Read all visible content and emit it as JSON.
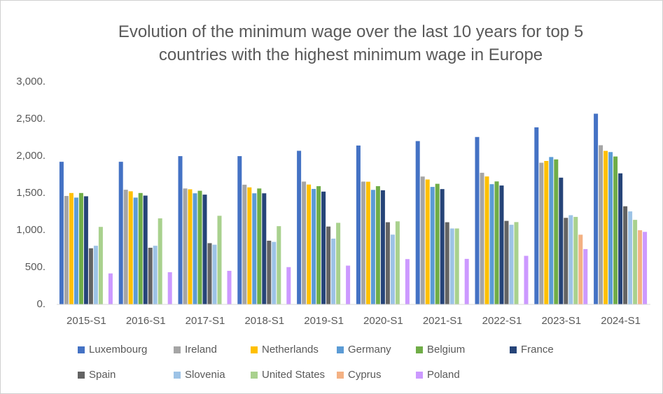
{
  "chart_data": {
    "type": "bar",
    "title": "Evolution of the minimum wage over the last 10 years for top 5 countries with the highest minimum wage in Europe",
    "categories": [
      "2015-S1",
      "2016-S1",
      "2017-S1",
      "2018-S1",
      "2019-S1",
      "2020-S1",
      "2021-S1",
      "2022-S1",
      "2023-S1",
      "2024-S1"
    ],
    "series": [
      {
        "name": "Luxembourg",
        "color": "#4472c4",
        "values": [
          1923,
          1923,
          1999,
          1999,
          2071,
          2142,
          2202,
          2257,
          2387,
          2571
        ]
      },
      {
        "name": "Ireland",
        "color": "#a5a5a5",
        "values": [
          1462,
          1546,
          1563,
          1614,
          1656,
          1656,
          1724,
          1775,
          1910,
          2146
        ]
      },
      {
        "name": "Netherlands",
        "color": "#ffc000",
        "values": [
          1502,
          1525,
          1552,
          1578,
          1616,
          1654,
          1684,
          1725,
          1934,
          2070
        ]
      },
      {
        "name": "Germany",
        "color": "#5b9bd5",
        "values": [
          1440,
          1440,
          1498,
          1498,
          1557,
          1544,
          1584,
          1621,
          1987,
          2054
        ]
      },
      {
        "name": "Belgium",
        "color": "#70ad47",
        "values": [
          1502,
          1502,
          1532,
          1563,
          1594,
          1594,
          1626,
          1658,
          1955,
          1994
        ]
      },
      {
        "name": "France",
        "color": "#264478",
        "values": [
          1458,
          1467,
          1480,
          1498,
          1521,
          1539,
          1555,
          1603,
          1709,
          1767
        ]
      },
      {
        "name": "Spain",
        "color": "#636363",
        "values": [
          757,
          764,
          826,
          859,
          1050,
          1108,
          1108,
          1126,
          1167,
          1323
        ]
      },
      {
        "name": "Slovenia",
        "color": "#9dc3e6",
        "values": [
          791,
          791,
          805,
          843,
          887,
          941,
          1024,
          1074,
          1203,
          1254
        ]
      },
      {
        "name": "United States",
        "color": "#a9d18e",
        "values": [
          1045,
          1160,
          1195,
          1055,
          1100,
          1120,
          1024,
          1110,
          1180,
          1140
        ]
      },
      {
        "name": "Cyprus",
        "color": "#f4b183",
        "values": [
          null,
          null,
          null,
          null,
          null,
          null,
          null,
          null,
          940,
          1000
        ]
      },
      {
        "name": "Poland",
        "color": "#cc99ff",
        "values": [
          418,
          434,
          453,
          503,
          523,
          611,
          614,
          655,
          746,
          978
        ]
      }
    ],
    "ylim": [
      0,
      3000
    ],
    "yticks": [
      {
        "value": 0,
        "label": "0."
      },
      {
        "value": 500,
        "label": "500."
      },
      {
        "value": 1000,
        "label": "1,000."
      },
      {
        "value": 1500,
        "label": "1,500."
      },
      {
        "value": 2000,
        "label": "2,000."
      },
      {
        "value": 2500,
        "label": "2,500."
      },
      {
        "value": 3000,
        "label": "3,000."
      }
    ],
    "grid": false
  }
}
